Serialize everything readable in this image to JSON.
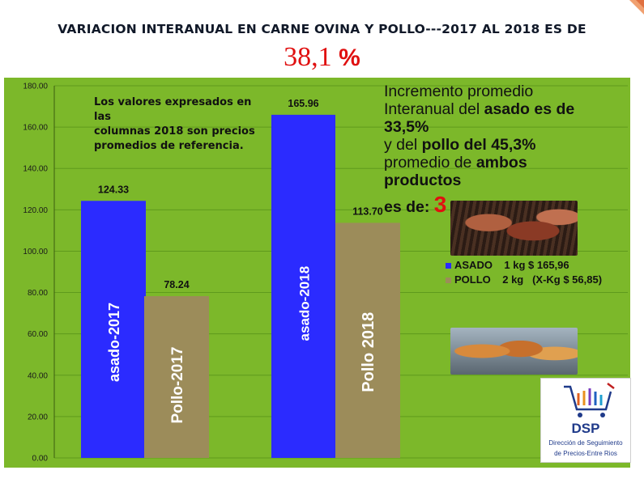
{
  "header": {
    "title": "VARIACION  INTERANUAL EN CARNE OVINA Y POLLO---2017 AL 2018 ES DE",
    "value": "38,1",
    "unit": "%"
  },
  "note_lines": [
    "Los valores expresados en",
    "las",
    "columnas 2018 son precios",
    "promedios de referencia."
  ],
  "callout": {
    "line1": "Incremento promedio",
    "line2_a": "Interanual del ",
    "line2_b": "asado es de",
    "line3": "33,5%",
    "line4_a": "y del ",
    "line4_b": "pollo del 45,3%",
    "line5_a": "promedio de ",
    "line5_b": "ambos",
    "line6": "productos",
    "line7": "es de: ",
    "line7_red": "3"
  },
  "legend": [
    {
      "label": "ASADO    1 kg $ 165,96",
      "color": "#2b2bff"
    },
    {
      "label": "POLLO    2 kg   (X-Kg $ 56,85)",
      "color": "#9c8c5a"
    }
  ],
  "logo": {
    "name": "DSP",
    "line1": "Dirección de Seguimiento",
    "line2": "de Precios-Entre Rios"
  },
  "colors": {
    "plot_bg": "#7cb82a",
    "asado": "#2b2bff",
    "pollo": "#9c8c5a",
    "accent_red": "#e01010"
  },
  "chart_data": {
    "type": "bar",
    "categories": [
      "asado-2017",
      "Pollo-2017",
      "asado-2018",
      "Pollo 2018"
    ],
    "values": [
      124.33,
      78.24,
      165.96,
      113.7
    ],
    "value_labels": [
      "124.33",
      "78.24",
      "165.96",
      "113.70"
    ],
    "bar_colors": [
      "#2b2bff",
      "#9c8c5a",
      "#2b2bff",
      "#9c8c5a"
    ],
    "yticks": [
      "0.00",
      "20.00",
      "40.00",
      "60.00",
      "80.00",
      "100.00",
      "120.00",
      "140.00",
      "160.00",
      "180.00"
    ],
    "ylim": [
      0,
      180
    ],
    "grid": true
  }
}
